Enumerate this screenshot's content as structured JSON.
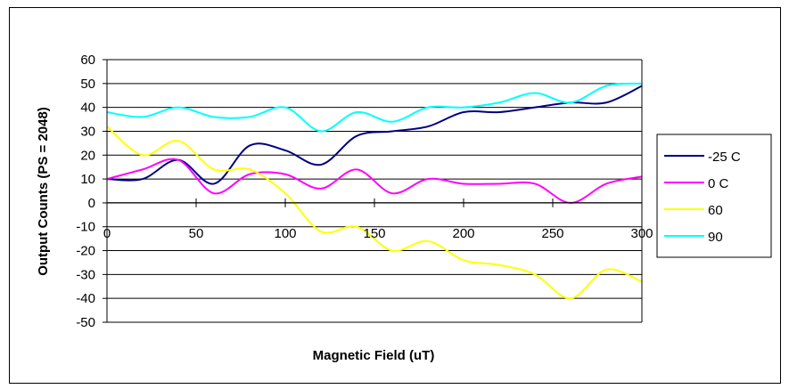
{
  "chart_data": {
    "type": "line",
    "xlabel": "Magnetic Field (uT)",
    "ylabel": "Output Counts (PS = 2048)",
    "xlim": [
      0,
      300
    ],
    "ylim": [
      -50,
      60
    ],
    "xticks": [
      "0",
      "50",
      "100",
      "150",
      "200",
      "250",
      "300"
    ],
    "yticks": [
      "60",
      "50",
      "40",
      "30",
      "20",
      "10",
      "0",
      "-10",
      "-20",
      "-30",
      "-40",
      "-50"
    ],
    "grid": "horizontal",
    "legend_position": "right",
    "x": [
      0,
      20,
      40,
      60,
      80,
      100,
      120,
      140,
      160,
      180,
      200,
      220,
      240,
      260,
      280,
      300
    ],
    "series": [
      {
        "name": "-25 C",
        "color": "#000080",
        "values": [
          10,
          10,
          18,
          8,
          24,
          22,
          16,
          28,
          30,
          32,
          38,
          38,
          40,
          42,
          42,
          49
        ]
      },
      {
        "name": "0 C",
        "color": "#ff00ff",
        "values": [
          10,
          14,
          18,
          4,
          12,
          12,
          6,
          14,
          4,
          10,
          8,
          8,
          8,
          0,
          8,
          11
        ]
      },
      {
        "name": "60",
        "color": "#ffff00",
        "values": [
          32,
          20,
          26,
          14,
          14,
          4,
          -12,
          -10,
          -20,
          -16,
          -24,
          -26,
          -30,
          -40,
          -28,
          -33
        ]
      },
      {
        "name": "90",
        "color": "#00ffff",
        "values": [
          38,
          36,
          40,
          36,
          36,
          40,
          30,
          38,
          34,
          40,
          40,
          42,
          46,
          42,
          49,
          50
        ]
      }
    ]
  }
}
